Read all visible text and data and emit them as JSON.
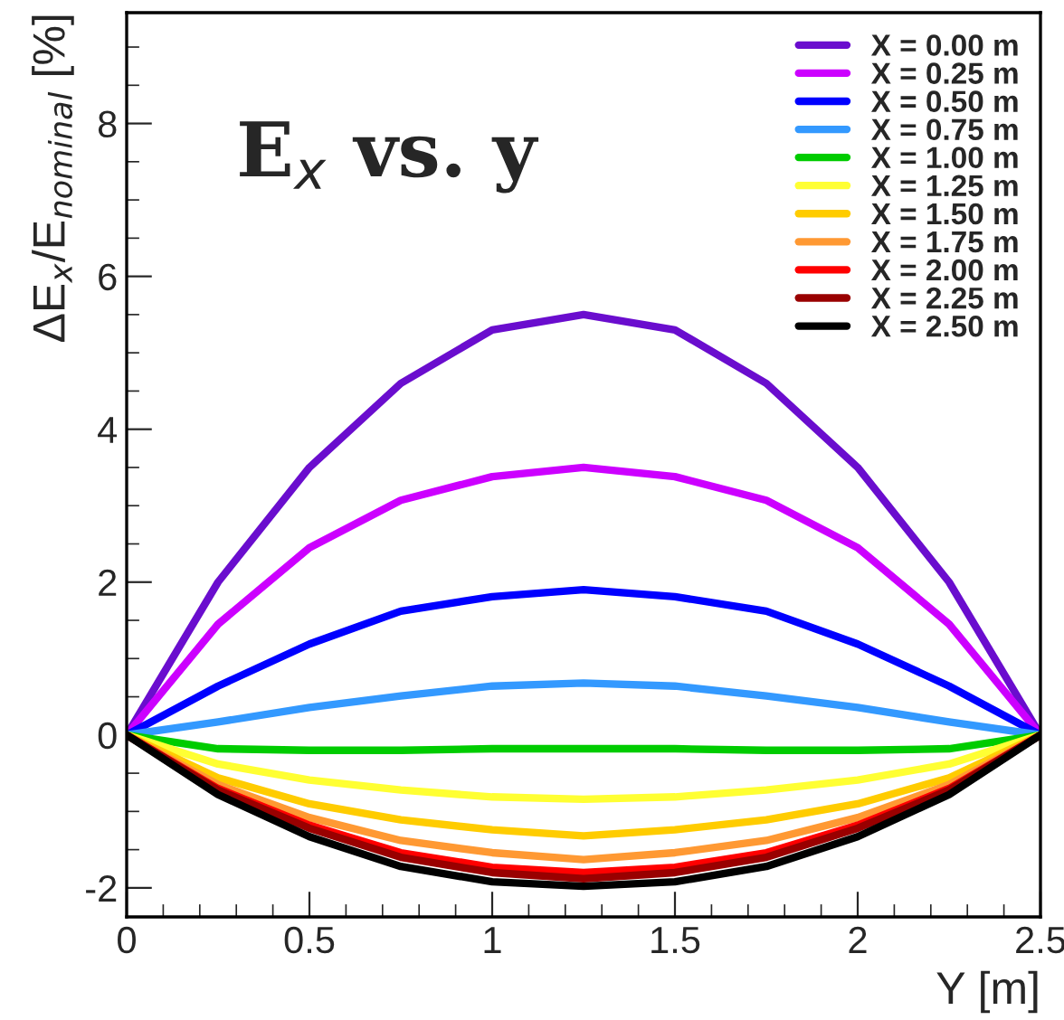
{
  "chart_data": {
    "type": "line",
    "title": "E$_{x}$ vs. y",
    "xlabel": "Y [m]",
    "ylabel": "ΔE$_{x}$/E$_{nominal}$ [%]",
    "x": [
      0,
      0.25,
      0.5,
      0.75,
      1.0,
      1.25,
      1.5,
      1.75,
      2.0,
      2.25,
      2.5
    ],
    "xlim": [
      0,
      2.5
    ],
    "xticks": [
      0,
      0.5,
      1,
      1.5,
      2,
      2.5
    ],
    "ylim": [
      -2.38,
      9.45
    ],
    "yticks": [
      -2,
      0,
      2,
      4,
      6,
      8
    ],
    "grid": false,
    "legend": "top right",
    "marker": "none",
    "line_style": "solid",
    "series": [
      {
        "name": "X = 0.00 m",
        "color": "#6a0dce",
        "values": [
          0,
          2.0,
          3.5,
          4.6,
          5.3,
          5.5,
          5.3,
          4.6,
          3.5,
          2.0,
          0
        ]
      },
      {
        "name": "X = 0.25 m",
        "color": "#cc00ff",
        "values": [
          0,
          1.45,
          2.45,
          3.07,
          3.38,
          3.5,
          3.38,
          3.07,
          2.45,
          1.45,
          0
        ]
      },
      {
        "name": "X = 0.50 m",
        "color": "#0000ff",
        "values": [
          0,
          0.64,
          1.19,
          1.62,
          1.81,
          1.9,
          1.81,
          1.62,
          1.19,
          0.64,
          0
        ]
      },
      {
        "name": "X = 0.75 m",
        "color": "#3399ff",
        "values": [
          0,
          0.17,
          0.36,
          0.51,
          0.64,
          0.68,
          0.64,
          0.51,
          0.36,
          0.17,
          0
        ]
      },
      {
        "name": "X = 1.00 m",
        "color": "#00cc00",
        "values": [
          0,
          -0.18,
          -0.2,
          -0.2,
          -0.18,
          -0.18,
          -0.18,
          -0.2,
          -0.2,
          -0.18,
          0
        ]
      },
      {
        "name": "X = 1.25 m",
        "color": "#ffff33",
        "values": [
          0,
          -0.38,
          -0.59,
          -0.72,
          -0.81,
          -0.84,
          -0.81,
          -0.72,
          -0.59,
          -0.38,
          0
        ]
      },
      {
        "name": "X = 1.50 m",
        "color": "#ffcc00",
        "values": [
          0,
          -0.56,
          -0.9,
          -1.11,
          -1.24,
          -1.32,
          -1.24,
          -1.11,
          -0.9,
          -0.56,
          0
        ]
      },
      {
        "name": "X = 1.75 m",
        "color": "#ff9933",
        "values": [
          0,
          -0.65,
          -1.08,
          -1.38,
          -1.54,
          -1.63,
          -1.54,
          -1.38,
          -1.08,
          -0.65,
          0
        ]
      },
      {
        "name": "X = 2.00 m",
        "color": "#ff0000",
        "values": [
          0,
          -0.7,
          -1.18,
          -1.54,
          -1.73,
          -1.8,
          -1.73,
          -1.54,
          -1.18,
          -0.7,
          0
        ]
      },
      {
        "name": "X = 2.25 m",
        "color": "#990000",
        "values": [
          0,
          -0.72,
          -1.22,
          -1.6,
          -1.8,
          -1.88,
          -1.8,
          -1.6,
          -1.22,
          -0.72,
          0
        ]
      },
      {
        "name": "X = 2.50 m",
        "color": "#000000",
        "values": [
          0,
          -0.78,
          -1.33,
          -1.72,
          -1.92,
          -1.98,
          -1.92,
          -1.72,
          -1.33,
          -0.78,
          0
        ]
      }
    ]
  }
}
